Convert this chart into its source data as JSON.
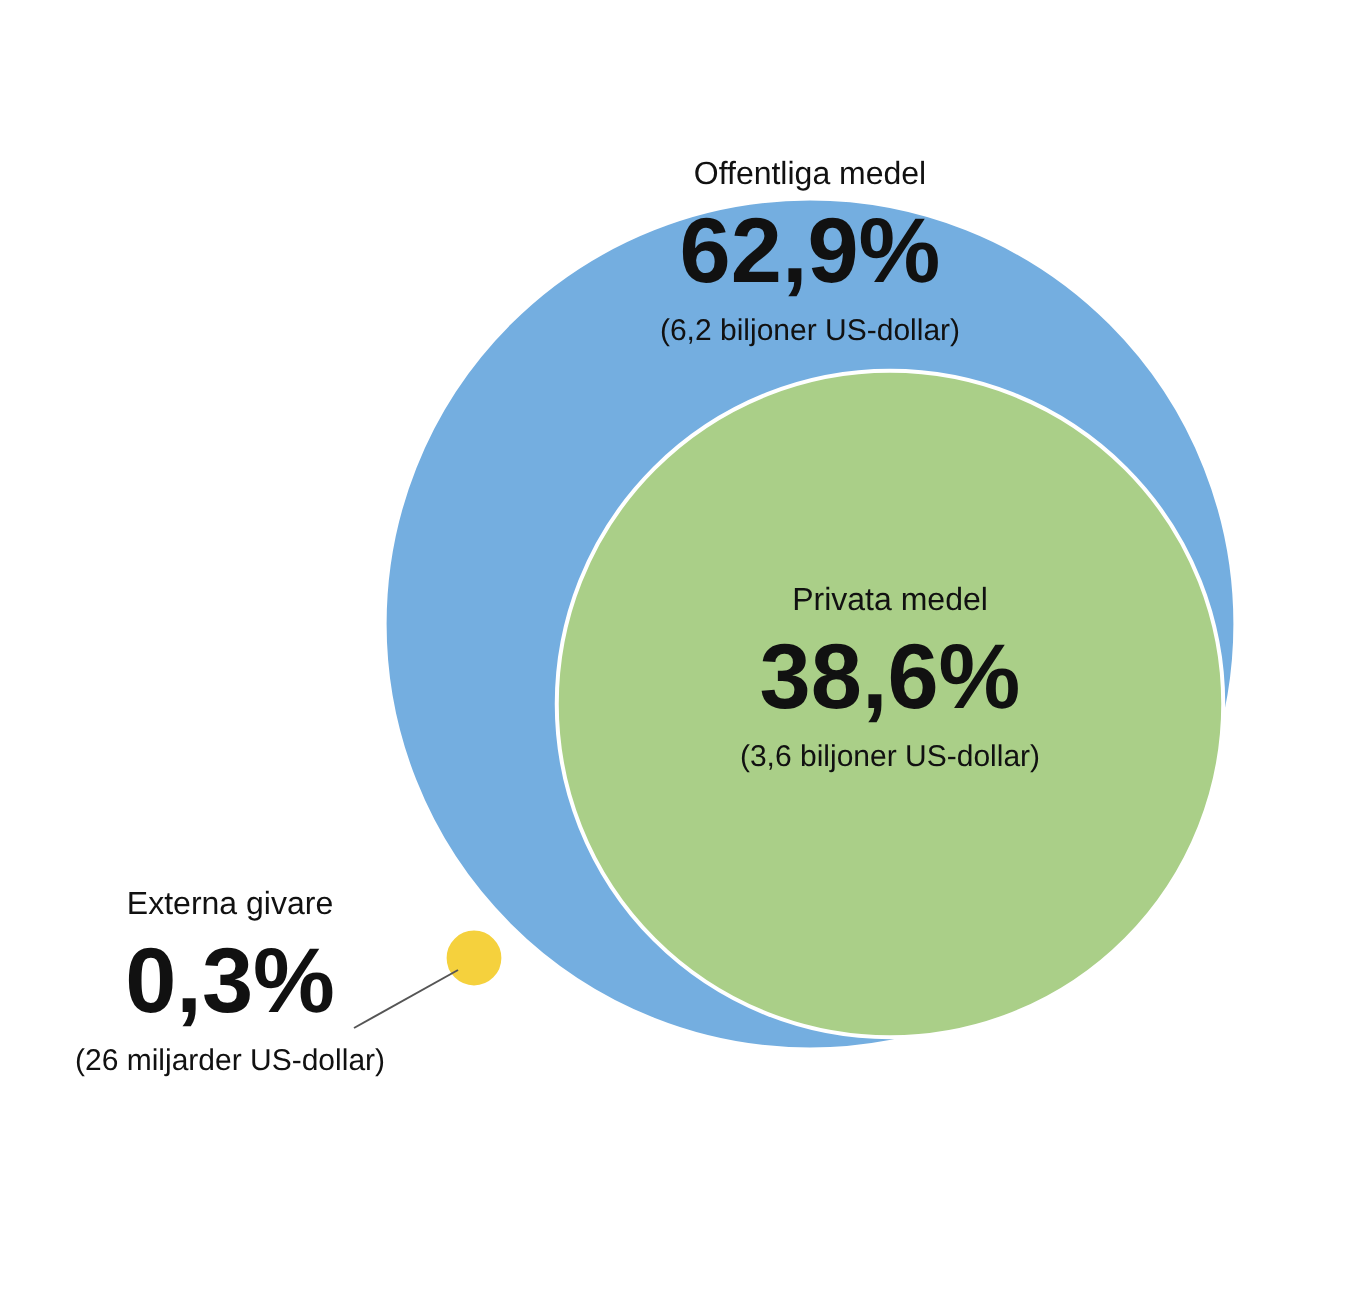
{
  "chart_data": {
    "type": "other",
    "categories": [
      "Offentliga medel",
      "Privata medel",
      "Externa givare"
    ],
    "values": [
      62.9,
      38.6,
      0.3
    ],
    "value_labels": [
      "62,9%",
      "38,6%",
      "0,3%"
    ],
    "colors": [
      "#74aee0",
      "#aacf88",
      "#f5d13d"
    ],
    "annotations": [
      {
        "text": "(6,2 biljoner US-dollar)",
        "x": "Offentliga medel"
      },
      {
        "text": "(3,6 biljoner US-dollar)",
        "x": "Privata medel"
      },
      {
        "text": "(26 miljarder US-dollar)",
        "x": "Externa givare"
      }
    ]
  }
}
